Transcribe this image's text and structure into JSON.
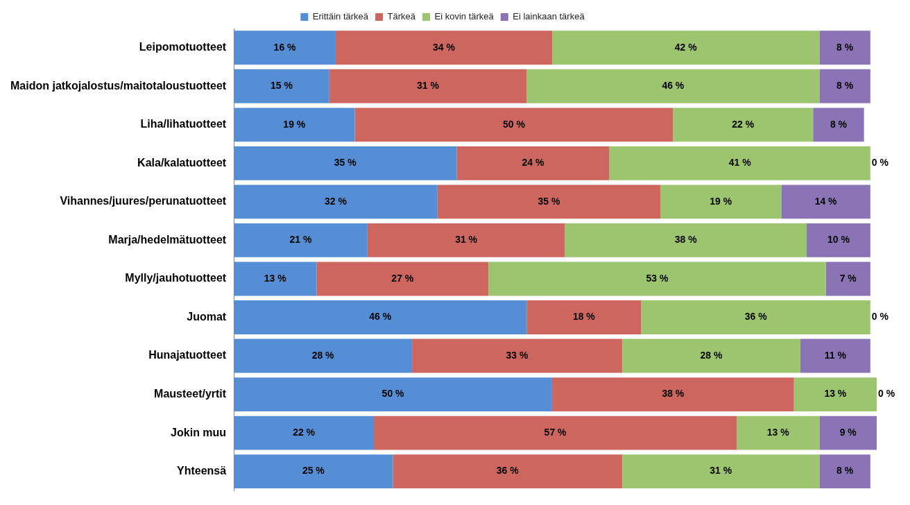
{
  "chart_data": {
    "type": "bar",
    "orientation": "horizontal",
    "stacked": true,
    "legend": "top",
    "categories": [
      "Leipomotuotteet",
      "Maidon jatkojalostus/maitotaloustuotteet",
      "Liha/lihatuotteet",
      "Kala/kalatuotteet",
      "Vihannes/juures/perunatuotteet",
      "Marja/hedelmätuotteet",
      "Mylly/jauhotuotteet",
      "Juomat",
      "Hunajatuotteet",
      "Mausteet/yrtit",
      "Jokin muu",
      "Yhteensä"
    ],
    "series": [
      {
        "name": "Erittäin tärkeä",
        "color": "#558ed5",
        "values": [
          16,
          15,
          19,
          35,
          32,
          21,
          13,
          46,
          28,
          50,
          22,
          25
        ],
        "value_labels": [
          "16 %",
          "15 %",
          "19 %",
          "35 %",
          "32 %",
          "21 %",
          "13 %",
          "46 %",
          "28 %",
          "50 %",
          "22 %",
          "25 %"
        ]
      },
      {
        "name": "Tärkeä",
        "color": "#cd665f",
        "values": [
          34,
          31,
          50,
          24,
          35,
          31,
          27,
          18,
          33,
          38,
          57,
          36
        ],
        "value_labels": [
          "34 %",
          "31 %",
          "50 %",
          "24 %",
          "35 %",
          "31 %",
          "27 %",
          "18 %",
          "33 %",
          "38 %",
          "57 %",
          "36 %"
        ]
      },
      {
        "name": "Ei kovin tärkeä",
        "color": "#9dc56f",
        "values": [
          42,
          46,
          22,
          41,
          19,
          38,
          53,
          36,
          28,
          13,
          13,
          31
        ],
        "value_labels": [
          "42 %",
          "46 %",
          "22 %",
          "41 %",
          "19 %",
          "38 %",
          "53 %",
          "36 %",
          "28 %",
          "13 %",
          "13 %",
          "31 %"
        ]
      },
      {
        "name": "Ei lainkaan tärkeä",
        "color": "#8b74b5",
        "values": [
          8,
          8,
          8,
          0,
          14,
          10,
          7,
          0,
          11,
          0,
          9,
          8
        ],
        "value_labels": [
          "8 %",
          "8 %",
          "8 %",
          "0 %",
          "14 %",
          "10 %",
          "7 %",
          "0 %",
          "11 %",
          "0 %",
          "9 %",
          "8 %"
        ]
      }
    ]
  }
}
